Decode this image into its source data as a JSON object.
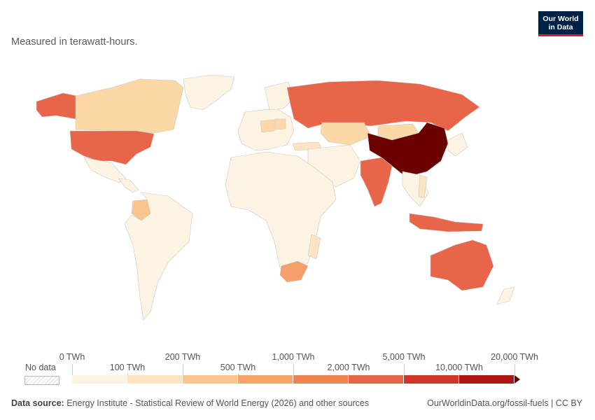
{
  "subtitle": "Measured in terawatt-hours.",
  "logo": {
    "line1": "Our World",
    "line2": "in Data"
  },
  "legend": {
    "no_data_label": "No data",
    "upper_labels": [
      "0 TWh",
      "200 TWh",
      "1,000 TWh",
      "5,000 TWh",
      "20,000 TWh"
    ],
    "lower_labels": [
      "100 TWh",
      "500 TWh",
      "2,000 TWh",
      "10,000 TWh"
    ],
    "bin_colors": [
      "#fdf3e3",
      "#fde3c2",
      "#fbc48e",
      "#f7a26a",
      "#f08352",
      "#e8654a",
      "#d0352c",
      "#b01515",
      "#6b0000"
    ]
  },
  "footer": {
    "source_label": "Data source:",
    "source_text": "Energy Institute - Statistical Review of World Energy (2026) and other sources",
    "link": "OurWorldinData.org/fossil-fuels | CC BY"
  },
  "colors": {
    "no_data": "#ffffff",
    "border": "#c8c8c8",
    "ocean": "#ffffff"
  }
}
